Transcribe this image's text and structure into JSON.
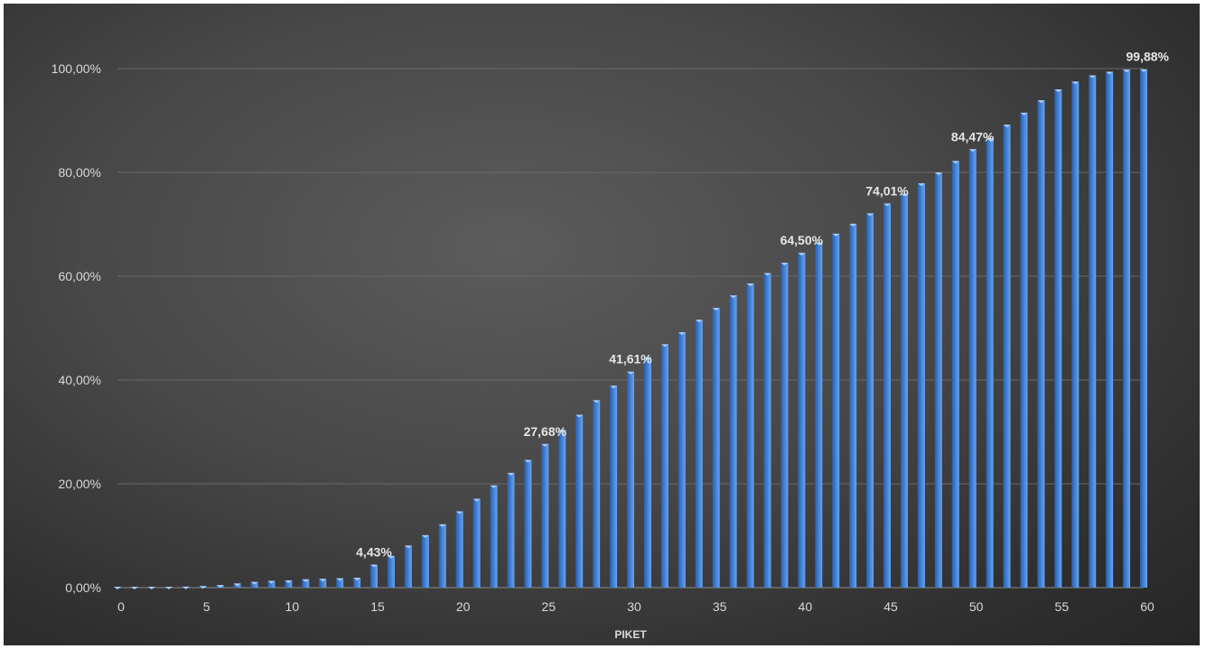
{
  "chart_data": {
    "type": "bar",
    "title": "",
    "xlabel": "PIKET",
    "ylabel": "",
    "ylim": [
      0,
      100
    ],
    "y_ticks": [
      "0,00%",
      "20,00%",
      "40,00%",
      "60,00%",
      "80,00%",
      "100,00%"
    ],
    "y_tick_values": [
      0,
      20,
      40,
      60,
      80,
      100
    ],
    "xlim": [
      0,
      60
    ],
    "x_ticks": [
      0,
      5,
      10,
      15,
      20,
      25,
      30,
      35,
      40,
      45,
      50,
      55,
      60
    ],
    "grid": true,
    "legend": "none",
    "bar_color": "#3f7fd4",
    "x": [
      0,
      1,
      2,
      3,
      4,
      5,
      6,
      7,
      8,
      9,
      10,
      11,
      12,
      13,
      14,
      15,
      16,
      17,
      18,
      19,
      20,
      21,
      22,
      23,
      24,
      25,
      26,
      27,
      28,
      29,
      30,
      31,
      32,
      33,
      34,
      35,
      36,
      37,
      38,
      39,
      40,
      41,
      42,
      43,
      44,
      45,
      46,
      47,
      48,
      49,
      50,
      51,
      52,
      53,
      54,
      55,
      56,
      57,
      58,
      59,
      60
    ],
    "values": [
      0.05,
      0.1,
      0.1,
      0.15,
      0.2,
      0.3,
      0.5,
      0.8,
      1.1,
      1.3,
      1.4,
      1.6,
      1.7,
      1.8,
      1.9,
      4.43,
      6.1,
      8.1,
      10.1,
      12.2,
      14.7,
      17.1,
      19.7,
      22.1,
      24.6,
      27.68,
      30.4,
      33.3,
      36.1,
      38.9,
      41.61,
      44.4,
      46.9,
      49.2,
      51.6,
      53.9,
      56.3,
      58.6,
      60.6,
      62.6,
      64.5,
      66.5,
      68.2,
      70.1,
      72.1,
      74.01,
      75.9,
      77.9,
      80.0,
      82.2,
      84.47,
      86.6,
      89.2,
      91.5,
      93.9,
      96.0,
      97.5,
      98.7,
      99.4,
      99.8,
      99.88
    ],
    "data_labels": [
      {
        "x": 15,
        "text": "4,43%"
      },
      {
        "x": 25,
        "text": "27,68%"
      },
      {
        "x": 30,
        "text": "41,61%"
      },
      {
        "x": 40,
        "text": "64,50%"
      },
      {
        "x": 45,
        "text": "74,01%"
      },
      {
        "x": 50,
        "text": "84,47%"
      },
      {
        "x": 60,
        "text": "99,88%"
      }
    ]
  }
}
